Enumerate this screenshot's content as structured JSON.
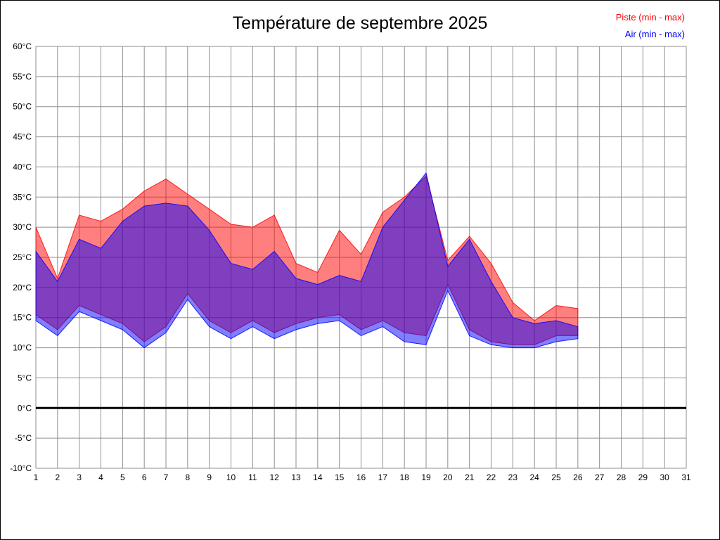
{
  "title": "Température de septembre 2025",
  "legend": {
    "piste": {
      "label": "Piste (min - max)",
      "color": "#ff0000"
    },
    "air": {
      "label": "Air (min - max)",
      "color": "#0000ff"
    }
  },
  "chart_data": {
    "type": "area",
    "subtype": "min-max bands (overlapping semi-transparent red and blue)",
    "title": "Température de septembre 2025",
    "unit": "°C",
    "grid": true,
    "grid_color": "#8f8f8f",
    "legend_position": "top-right",
    "zero_line": 0,
    "x": [
      1,
      2,
      3,
      4,
      5,
      6,
      7,
      8,
      9,
      10,
      11,
      12,
      13,
      14,
      15,
      16,
      17,
      18,
      19,
      20,
      21,
      22,
      23,
      24,
      25,
      26
    ],
    "x_axis": {
      "min": 1,
      "max": 31,
      "tick_step": 1,
      "ticks": [
        {
          "value": 1,
          "label": "1"
        },
        {
          "value": 2,
          "label": "2"
        },
        {
          "value": 3,
          "label": "3"
        },
        {
          "value": 4,
          "label": "4"
        },
        {
          "value": 5,
          "label": "5"
        },
        {
          "value": 6,
          "label": "6"
        },
        {
          "value": 7,
          "label": "7"
        },
        {
          "value": 8,
          "label": "8"
        },
        {
          "value": 9,
          "label": "9"
        },
        {
          "value": 10,
          "label": "10"
        },
        {
          "value": 11,
          "label": "11"
        },
        {
          "value": 12,
          "label": "12"
        },
        {
          "value": 13,
          "label": "13"
        },
        {
          "value": 14,
          "label": "14"
        },
        {
          "value": 15,
          "label": "15"
        },
        {
          "value": 16,
          "label": "16"
        },
        {
          "value": 17,
          "label": "17"
        },
        {
          "value": 18,
          "label": "18"
        },
        {
          "value": 19,
          "label": "19"
        },
        {
          "value": 20,
          "label": "20"
        },
        {
          "value": 21,
          "label": "21"
        },
        {
          "value": 22,
          "label": "22"
        },
        {
          "value": 23,
          "label": "23"
        },
        {
          "value": 24,
          "label": "24"
        },
        {
          "value": 25,
          "label": "25"
        },
        {
          "value": 26,
          "label": "26"
        },
        {
          "value": 27,
          "label": "27"
        },
        {
          "value": 28,
          "label": "28"
        },
        {
          "value": 29,
          "label": "29"
        },
        {
          "value": 30,
          "label": "30"
        },
        {
          "value": 31,
          "label": "31"
        }
      ]
    },
    "y_axis": {
      "min": -10,
      "max": 60,
      "tick_step": 5,
      "ticks": [
        {
          "value": 60,
          "label": "60°C"
        },
        {
          "value": 55,
          "label": "55°C"
        },
        {
          "value": 50,
          "label": "50°C"
        },
        {
          "value": 45,
          "label": "45°C"
        },
        {
          "value": 40,
          "label": "40°C"
        },
        {
          "value": 35,
          "label": "35°C"
        },
        {
          "value": 30,
          "label": "30°C"
        },
        {
          "value": 25,
          "label": "25°C"
        },
        {
          "value": 20,
          "label": "20°C"
        },
        {
          "value": 15,
          "label": "15°C"
        },
        {
          "value": 10,
          "label": "10°C"
        },
        {
          "value": 5,
          "label": "5°C"
        },
        {
          "value": 0,
          "label": "0°C"
        },
        {
          "value": -5,
          "label": "-5°C"
        },
        {
          "value": -10,
          "label": "-10°C"
        }
      ]
    },
    "series": [
      {
        "name": "Piste (min - max)",
        "fill": "rgba(255,0,0,0.5)",
        "stroke": "rgba(255,0,0,0.85)",
        "max": [
          30,
          21.5,
          32,
          31,
          33,
          36,
          38,
          35.5,
          33,
          30.5,
          30,
          32,
          24,
          22.5,
          29.5,
          25.5,
          32.5,
          35,
          38.5,
          24.5,
          28.5,
          24,
          17.5,
          14.5,
          17,
          16.5
        ],
        "min": [
          15.5,
          13,
          17,
          15.5,
          14,
          11,
          13.5,
          19,
          14.5,
          12.5,
          14.5,
          12.5,
          14,
          15,
          15.5,
          13,
          14.5,
          12.5,
          12,
          20.5,
          13,
          11,
          10.5,
          10.5,
          12,
          12
        ]
      },
      {
        "name": "Air (min - max)",
        "fill": "rgba(0,0,255,0.5)",
        "stroke": "rgba(0,0,255,0.85)",
        "max": [
          26,
          21,
          28,
          26.5,
          31,
          33.5,
          34,
          33.5,
          29.5,
          24,
          23,
          26,
          21.5,
          20.5,
          22,
          21,
          30,
          34.5,
          39,
          23.5,
          28,
          21,
          15,
          14,
          14.5,
          13.5
        ],
        "min": [
          14.5,
          12,
          16,
          14.5,
          13,
          10,
          12.5,
          18,
          13.5,
          11.5,
          13.5,
          11.5,
          13,
          14,
          14.5,
          12,
          13.5,
          11,
          10.5,
          19.5,
          12,
          10.5,
          10,
          10,
          11,
          11.5
        ]
      }
    ]
  }
}
